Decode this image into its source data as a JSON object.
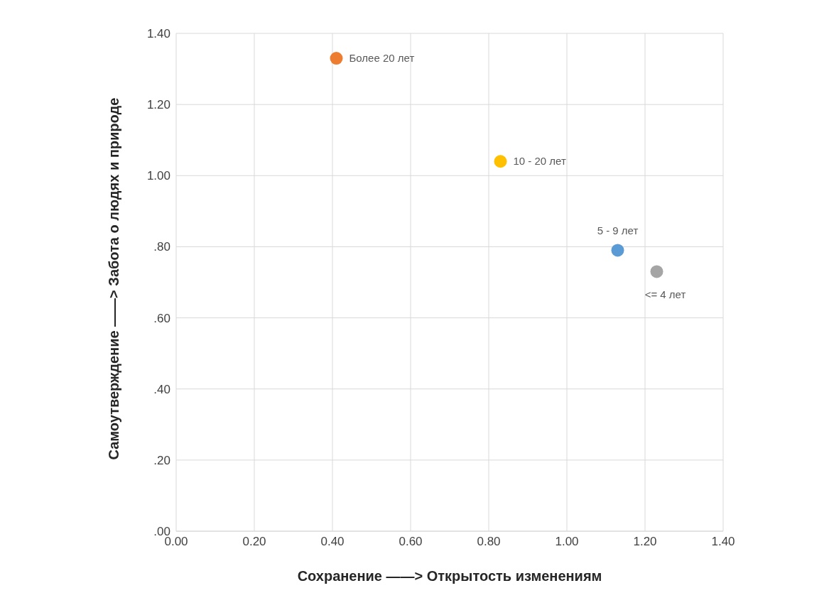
{
  "chart_data": {
    "type": "scatter",
    "xlabel": "Сохранение ——> Открытость изменениям",
    "ylabel": "Самоутверждение ——> Забота о людях и природе",
    "series": [
      {
        "name": "Более 20 лет",
        "color": "#ed7d31",
        "x": [
          0.41
        ],
        "values": [
          1.33
        ]
      },
      {
        "name": "10 - 20 лет",
        "color": "#ffc000",
        "x": [
          0.83
        ],
        "values": [
          1.04
        ]
      },
      {
        "name": "5 - 9 лет",
        "color": "#5b9bd5",
        "x": [
          1.13
        ],
        "values": [
          0.79
        ]
      },
      {
        "name": "<= 4 лет",
        "color": "#a5a5a5",
        "x": [
          1.23
        ],
        "values": [
          0.73
        ]
      }
    ],
    "xlim": [
      0,
      1.4
    ],
    "ylim": [
      0,
      1.4
    ],
    "xticks": [
      {
        "value": 0,
        "label": "0.00"
      },
      {
        "value": 0.2,
        "label": "0.20"
      },
      {
        "value": 0.4,
        "label": "0.40"
      },
      {
        "value": 0.6,
        "label": "0.60"
      },
      {
        "value": 0.8,
        "label": "0.80"
      },
      {
        "value": 1,
        "label": "1.00"
      },
      {
        "value": 1.2,
        "label": "1.20"
      },
      {
        "value": 1.4,
        "label": "1.40"
      }
    ],
    "yticks": [
      {
        "value": 0,
        "label": ".00"
      },
      {
        "value": 0.2,
        "label": ".20"
      },
      {
        "value": 0.4,
        "label": ".40"
      },
      {
        "value": 0.6,
        "label": ".60"
      },
      {
        "value": 0.8,
        "label": ".80"
      },
      {
        "value": 1,
        "label": "1.00"
      },
      {
        "value": 1.2,
        "label": "1.20"
      },
      {
        "value": 1.4,
        "label": "1.40"
      }
    ],
    "grid": true,
    "legend": false,
    "marker": "circle"
  }
}
